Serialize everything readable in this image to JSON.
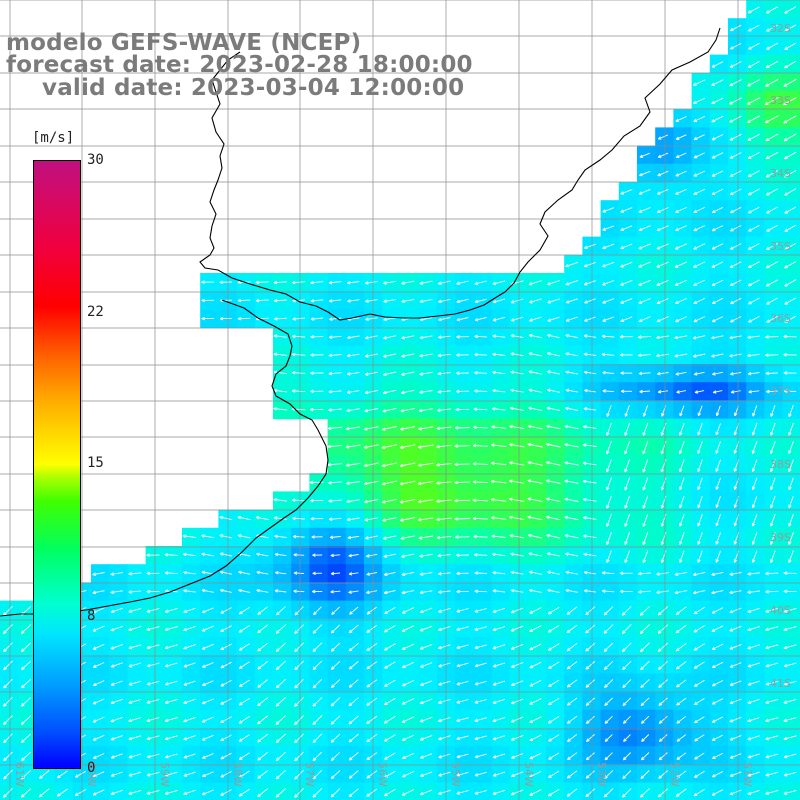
{
  "title": {
    "line1": "modelo GEFS-WAVE (NCEP)",
    "line2": "forecast date: 2023-02-28 18:00:00",
    "line3": "valid date: 2023-03-04 12:00:00"
  },
  "colorbar": {
    "unit": "[m/s]",
    "ticks": [
      "30",
      "22",
      "15",
      "8",
      "0"
    ],
    "tick_values": [
      30,
      22,
      15,
      8,
      0
    ]
  },
  "map": {
    "lat_labels": [
      "32S",
      "33S",
      "34S",
      "35S",
      "36S",
      "37S",
      "38S",
      "39S",
      "40S",
      "41S"
    ],
    "lon_labels": [
      "61W",
      "60W",
      "59W",
      "58W",
      "57W",
      "56W",
      "55W",
      "54W",
      "53W",
      "52W",
      "51W"
    ],
    "colors": {
      "land": "#ffffff",
      "grid": "#8c8c8c",
      "coast": "#000000",
      "labels": "#9a9a9a"
    }
  }
}
